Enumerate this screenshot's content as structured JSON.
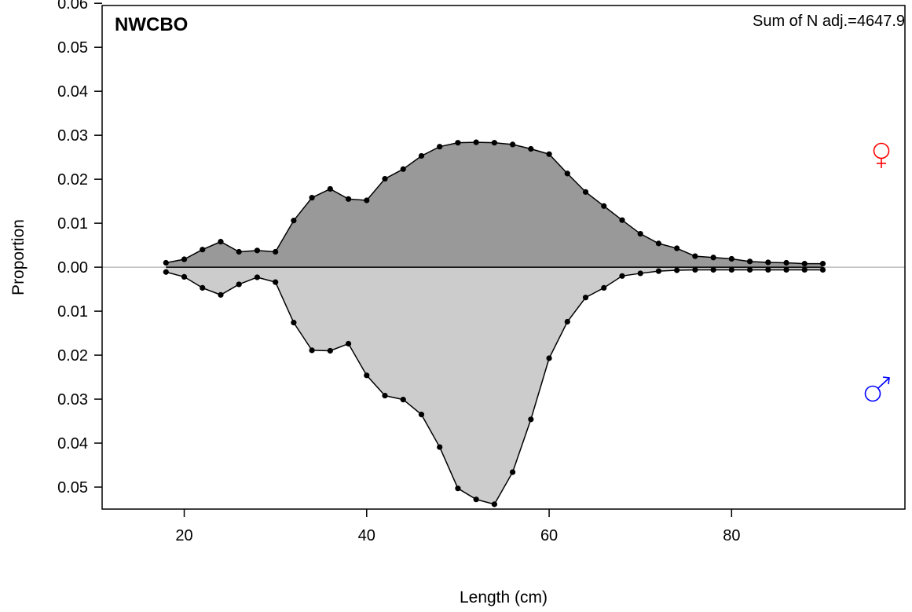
{
  "chart_data": {
    "type": "area",
    "title": "NWCBO",
    "annotation": "Sum of N adj.=4647.9",
    "xlabel": "Length (cm)",
    "ylabel": "Proportion",
    "xlim": [
      11,
      99
    ],
    "ylim": [
      -0.055,
      0.0595
    ],
    "x_ticks": [
      20,
      40,
      60,
      80
    ],
    "x_tick_labels": [
      "20",
      "40",
      "60",
      "80"
    ],
    "y_ticks": [
      0.06,
      0.05,
      0.04,
      0.03,
      0.02,
      0.01,
      0.0,
      -0.01,
      -0.02,
      -0.03,
      -0.04,
      -0.05
    ],
    "y_tick_labels": [
      "0.06",
      "0.05",
      "0.04",
      "0.03",
      "0.02",
      "0.01",
      "0.00",
      "0.01",
      "0.02",
      "0.03",
      "0.04",
      "0.05"
    ],
    "grid": false,
    "x": [
      18,
      20,
      22,
      24,
      26,
      28,
      30,
      32,
      34,
      36,
      38,
      40,
      42,
      44,
      46,
      48,
      50,
      52,
      54,
      56,
      58,
      60,
      62,
      64,
      66,
      68,
      70,
      72,
      74,
      76,
      78,
      80,
      82,
      84,
      86,
      88,
      90
    ],
    "series": [
      {
        "sex": "female",
        "symbol": "♀",
        "color": "#ff0000",
        "fill": "#999999",
        "values": [
          0.001,
          0.0018,
          0.004,
          0.0058,
          0.0035,
          0.0038,
          0.0035,
          0.0106,
          0.0158,
          0.0178,
          0.0155,
          0.0152,
          0.0201,
          0.0223,
          0.0253,
          0.0274,
          0.0283,
          0.0284,
          0.0283,
          0.0279,
          0.0269,
          0.0257,
          0.0213,
          0.0171,
          0.0139,
          0.0107,
          0.0076,
          0.0054,
          0.0043,
          0.0025,
          0.0022,
          0.0019,
          0.0013,
          0.0011,
          0.001,
          0.0008,
          0.0008
        ]
      },
      {
        "sex": "male",
        "symbol": "♂",
        "color": "#0000ff",
        "fill": "#cccccc",
        "values": [
          0.0011,
          0.0022,
          0.0047,
          0.0063,
          0.0039,
          0.0023,
          0.0034,
          0.0126,
          0.0189,
          0.019,
          0.0174,
          0.0246,
          0.0292,
          0.0301,
          0.0335,
          0.0409,
          0.0503,
          0.0528,
          0.0539,
          0.0466,
          0.0346,
          0.0207,
          0.0124,
          0.0069,
          0.0047,
          0.002,
          0.0014,
          0.0009,
          0.0007,
          0.0006,
          0.0006,
          0.0006,
          0.0006,
          0.0006,
          0.0006,
          0.0006,
          0.0006
        ]
      }
    ]
  }
}
